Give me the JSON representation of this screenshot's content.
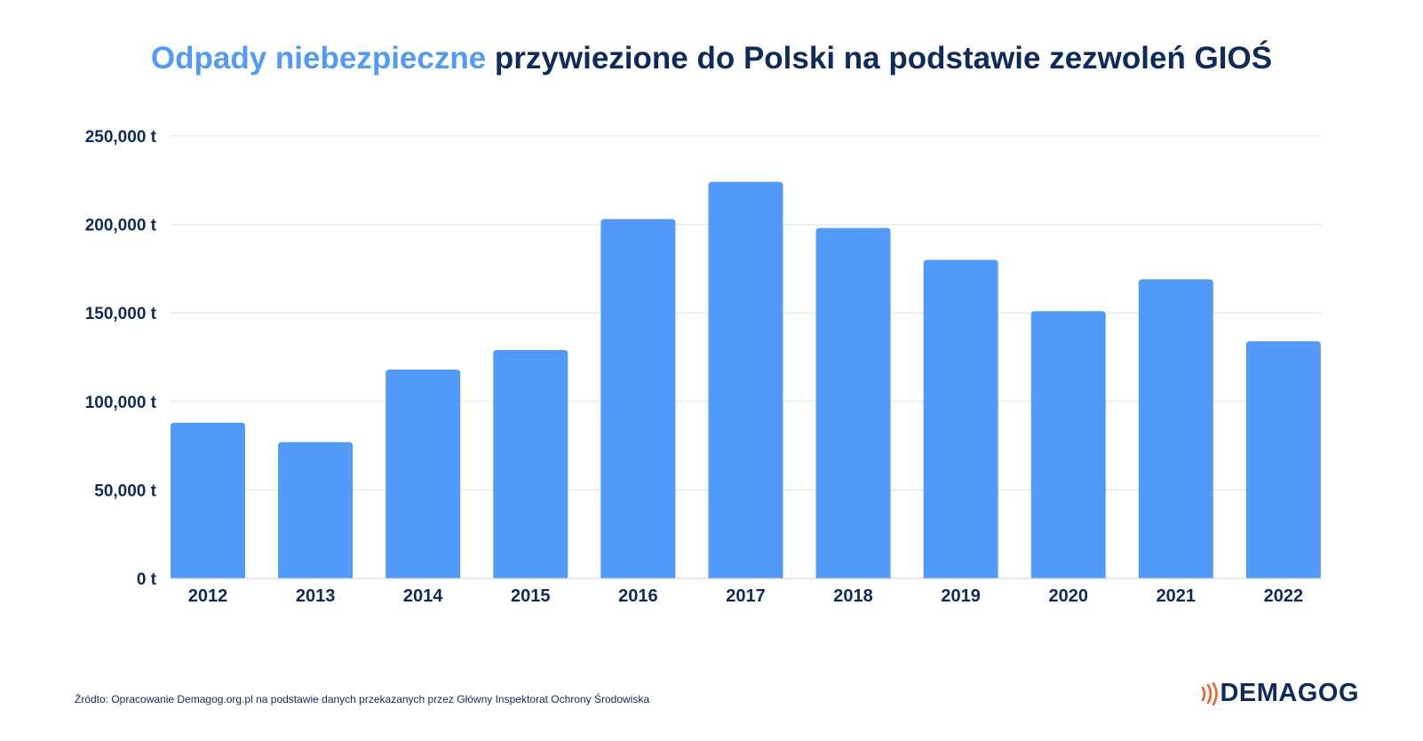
{
  "title": {
    "highlight": "Odpady niebezpieczne",
    "rest": " przywiezione do Polski na podstawie zezwoleń GIOŚ"
  },
  "colors": {
    "bar": "#529af9",
    "text": "#0f2a5c",
    "grid": "#dde3ec",
    "accent": "#e8622c"
  },
  "chart_data": {
    "type": "bar",
    "title": "Odpady niebezpieczne przywiezione do Polski na podstawie zezwoleń GIOŚ",
    "xlabel": "",
    "ylabel": "",
    "categories": [
      "2012",
      "2013",
      "2014",
      "2015",
      "2016",
      "2017",
      "2018",
      "2019",
      "2020",
      "2021",
      "2022"
    ],
    "values": [
      88000,
      77000,
      118000,
      129000,
      203000,
      224000,
      198000,
      180000,
      151000,
      169000,
      134000
    ],
    "ylim": [
      0,
      250000
    ],
    "yticks": [
      0,
      50000,
      100000,
      150000,
      200000,
      250000
    ],
    "ytick_labels": [
      "0 t",
      "50,000 t",
      "100,000 t",
      "150,000 t",
      "200,000 t",
      "250,000 t"
    ],
    "grid": true,
    "legend": "none"
  },
  "footer": {
    "source": "Źródto: Opracowanie Demagog.org.pl na podstawie danych przekazanych przez Główny Inspektorat Ochrony Środowiska",
    "logo_text": "DEMAGOG",
    "logo_icon": "signal-waves-icon"
  }
}
